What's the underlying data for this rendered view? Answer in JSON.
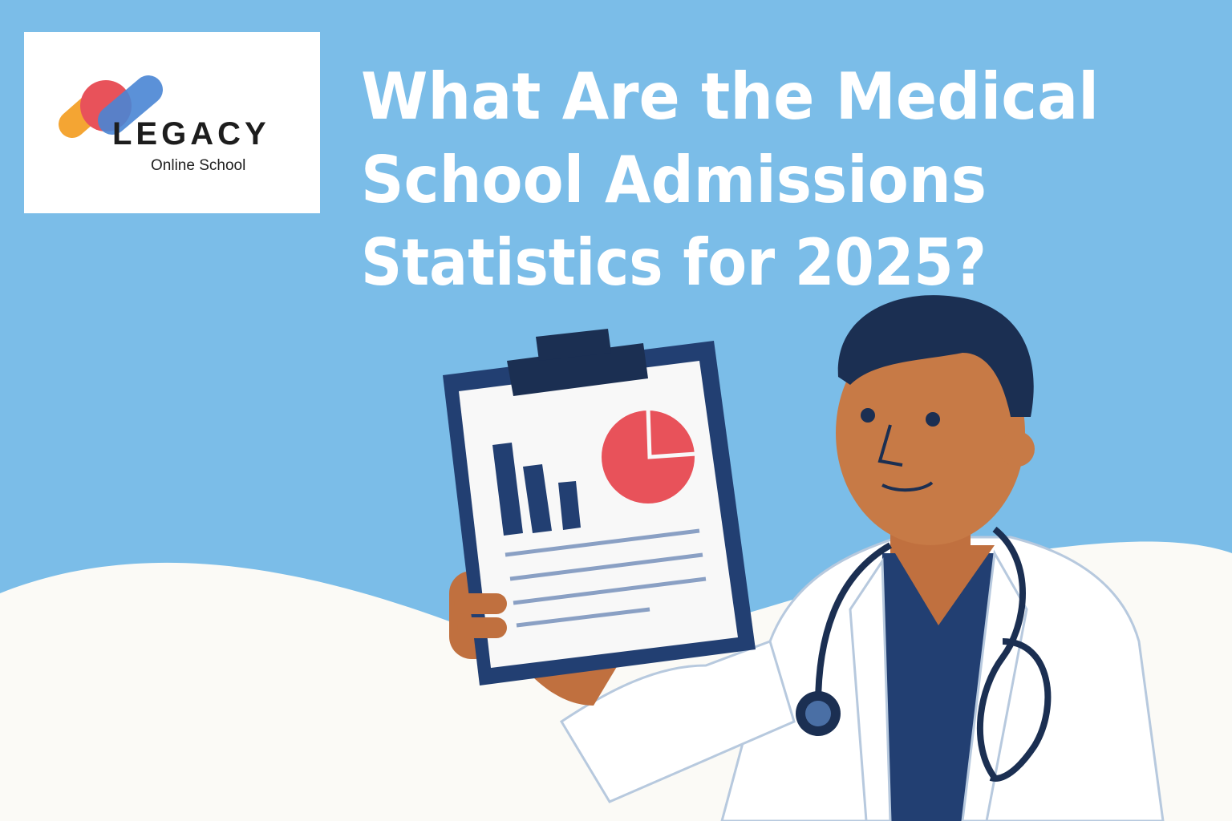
{
  "logo": {
    "name": "LEGACY",
    "tagline": "Online School"
  },
  "header": {
    "title_lines": [
      "What Are the Medical",
      "School Admissions",
      "Statistics for 2025?"
    ]
  }
}
